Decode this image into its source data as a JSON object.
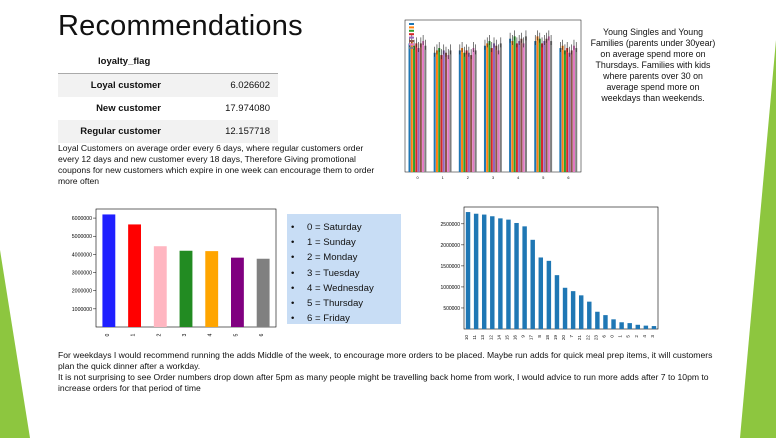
{
  "title": "Recommendations",
  "loyalty_table": {
    "header": "loyalty_flag",
    "rows": [
      {
        "label": "Loyal customer",
        "value": "6.026602"
      },
      {
        "label": "New customer",
        "value": "17.974080"
      },
      {
        "label": "Regular customer",
        "value": "12.157718"
      }
    ]
  },
  "loyal_text": "Loyal Customers on average order every 6 days, where regular customers order every 12 days and new customer every 18 days, Therefore Giving promotional coupons for new customers which expire in one week can encourage them to order more often",
  "young_text": "Young Singles and Young Families (parents under 30year)  on average spend more on Thursdays. Families with kids where parents over 30 on average spend more on weekdays than weekends.",
  "day_legend": [
    "0 = Saturday",
    "1 = Sunday",
    "2 = Monday",
    "3 = Tuesday",
    "4 = Wednesday",
    "5 = Thursday",
    "6 = Friday"
  ],
  "bottom_text_1": "For weekdays I would recommend running the adds Middle of the week, to encourage more orders to be placed. Maybe run adds for quick meal prep items, it will customers plan the quick dinner after a workday.",
  "bottom_text_2": "It is not surprising to see Order numbers drop down after 5pm as many people might be travelling back home from work, I would advice to run more adds after 7 to 10pm to increase orders for that period of time",
  "colors": {
    "accent_green": "#8dc63f",
    "bar_blue": "#1f77b4"
  },
  "chart_data": [
    {
      "type": "bar",
      "categories": [
        "0",
        "1",
        "2",
        "3",
        "4",
        "5",
        "6"
      ],
      "values": [
        6200000,
        5650000,
        4450000,
        4200000,
        4180000,
        3820000,
        3760000
      ],
      "colors": [
        "#1f1fff",
        "#ff0000",
        "#ffb6c1",
        "#228b22",
        "#ffa500",
        "#800080",
        "#808080"
      ],
      "ylim": [
        0,
        6500000
      ],
      "yticks": [
        "1000000",
        "2000000",
        "3000000",
        "4000000",
        "5000000",
        "6000000"
      ],
      "yticks_values": [
        1000000,
        2000000,
        3000000,
        4000000,
        5000000,
        6000000
      ]
    },
    {
      "type": "bar",
      "categories": [
        "10",
        "11",
        "13",
        "12",
        "14",
        "15",
        "16",
        "9",
        "17",
        "8",
        "18",
        "19",
        "20",
        "7",
        "21",
        "22",
        "23",
        "6",
        "0",
        "1",
        "5",
        "2",
        "4",
        "3"
      ],
      "values": [
        2780000,
        2740000,
        2720000,
        2680000,
        2630000,
        2600000,
        2520000,
        2440000,
        2120000,
        1700000,
        1620000,
        1280000,
        980000,
        900000,
        800000,
        650000,
        410000,
        330000,
        230000,
        160000,
        140000,
        100000,
        80000,
        70000
      ],
      "ylim": [
        0,
        2900000
      ],
      "yticks": [
        "500000",
        "1000000",
        "1500000",
        "2000000",
        "2500000"
      ],
      "yticks_values": [
        500000,
        1000000,
        1500000,
        2000000,
        2500000
      ]
    },
    {
      "type": "bar",
      "categories": [
        "0",
        "1",
        "2",
        "3",
        "4",
        "5",
        "6"
      ],
      "series_count": 8,
      "series_colors": [
        "#1f77b4",
        "#ff7f0e",
        "#2ca02c",
        "#d62728",
        "#9467bd",
        "#8c564b",
        "#e377c2",
        "#7f7f7f"
      ],
      "values": [
        [
          55,
          56,
          54,
          55,
          53,
          55,
          56,
          54
        ],
        [
          51,
          52,
          53,
          50,
          52,
          51,
          50,
          52
        ],
        [
          52,
          53,
          51,
          52,
          51,
          50,
          53,
          52
        ],
        [
          54,
          55,
          56,
          53,
          55,
          54,
          52,
          55
        ],
        [
          57,
          56,
          58,
          55,
          56,
          57,
          55,
          58
        ],
        [
          56,
          58,
          57,
          55,
          56,
          57,
          58,
          56
        ],
        [
          53,
          54,
          52,
          53,
          51,
          52,
          54,
          53
        ]
      ],
      "ylim": [
        0,
        65
      ]
    }
  ]
}
